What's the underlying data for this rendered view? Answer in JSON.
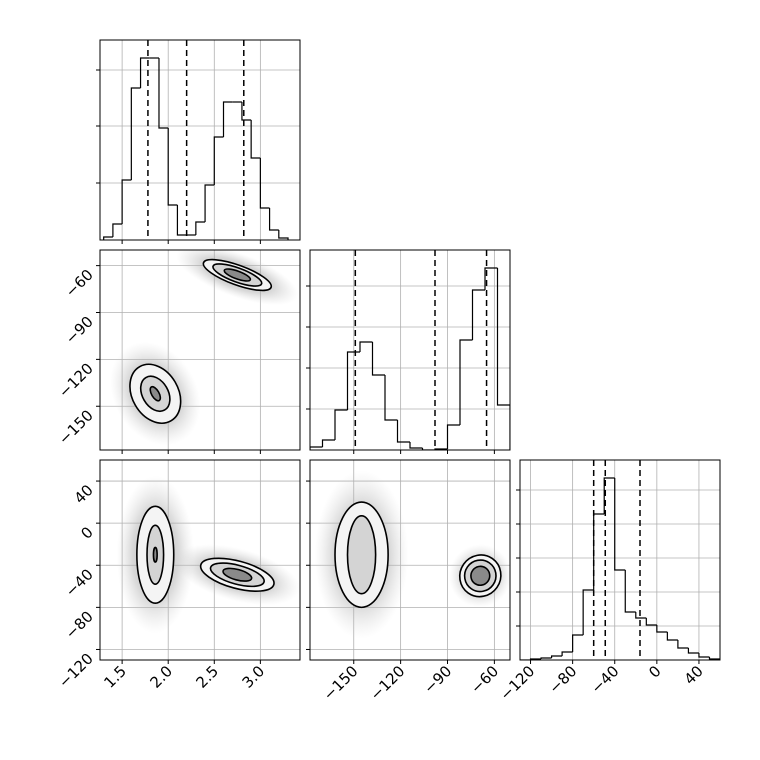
{
  "chart_data": {
    "type": "corner",
    "grid": true,
    "color": "#000000",
    "params": [
      {
        "lim": [
          1.26,
          3.43
        ],
        "ticks": [
          1.5,
          {
            "value": 2,
            "label": "2.0"
          },
          2.5,
          {
            "value": 3,
            "label": "3.0"
          }
        ]
      },
      {
        "lim": [
          -178,
          -50
        ],
        "ticks": [
          {
            "value": -150,
            "label": "−150"
          },
          {
            "value": -120,
            "label": "−120"
          },
          {
            "value": -90,
            "label": "−90"
          },
          {
            "value": -60,
            "label": "−60"
          }
        ]
      },
      {
        "lim": [
          -130,
          60
        ],
        "ticks": [
          {
            "value": -120,
            "label": "−120"
          },
          {
            "value": -80,
            "label": "−80"
          },
          {
            "value": -40,
            "label": "−40"
          },
          0,
          40
        ]
      }
    ],
    "histograms": [
      {
        "bins": [
          1.3,
          1.4,
          1.5,
          1.6,
          1.7,
          1.8,
          1.9,
          2.0,
          2.1,
          2.2,
          2.3,
          2.4,
          2.5,
          2.6,
          2.7,
          2.8,
          2.9,
          3.0,
          3.1,
          3.2,
          3.3
        ],
        "counts": [
          3,
          16,
          60,
          152,
          182,
          182,
          112,
          35,
          5,
          5,
          18,
          55,
          103,
          138,
          138,
          120,
          82,
          32,
          10,
          2
        ],
        "ylim": [
          0,
          200
        ],
        "yticks": [
          57,
          114,
          170
        ],
        "quantiles": [
          1.78,
          2.2,
          2.82
        ]
      },
      {
        "bins": [
          -178,
          -170,
          -162,
          -154,
          -146,
          -138,
          -130,
          -122,
          -114,
          -106,
          -98,
          -90,
          -82,
          -74,
          -66,
          -58,
          -50
        ],
        "counts": [
          3,
          10,
          40,
          98,
          108,
          75,
          30,
          8,
          2,
          0,
          1,
          25,
          110,
          160,
          182,
          45
        ],
        "ylim": [
          0,
          200
        ],
        "yticks": [
          41,
          82,
          123,
          164
        ],
        "quantiles": [
          -149,
          -98,
          -65
        ]
      },
      {
        "bins": [
          -130,
          -120,
          -110,
          -100,
          -90,
          -80,
          -70,
          -60,
          -50,
          -40,
          -30,
          -20,
          -10,
          0,
          10,
          20,
          30,
          40,
          50,
          60
        ],
        "counts": [
          0,
          1,
          2,
          4,
          8,
          25,
          70,
          146,
          182,
          90,
          48,
          42,
          35,
          28,
          20,
          12,
          7,
          3,
          1
        ],
        "ylim": [
          0,
          200
        ],
        "yticks": [
          34,
          68,
          102,
          136,
          170
        ],
        "quantiles": [
          -60,
          -49,
          -16
        ]
      }
    ],
    "pairs": [
      {
        "x": 0,
        "y": 1,
        "clusters": [
          {
            "center": [
              1.86,
              -142
            ],
            "tilt": -30,
            "cloud": [
              0.45,
              35
            ],
            "contours": [
              [
                0.25,
                20
              ],
              [
                0.14,
                12
              ],
              [
                0.04,
                5
              ]
            ]
          },
          {
            "center": [
              2.75,
              -66
            ],
            "tilt": 20,
            "cloud": [
              0.7,
              14
            ],
            "contours": [
              [
                0.39,
                6.3
              ],
              [
                0.28,
                4.5
              ],
              [
                0.15,
                2.5
              ]
            ]
          }
        ]
      },
      {
        "x": 0,
        "y": 2,
        "clusters": [
          {
            "center": [
              1.86,
              -30
            ],
            "tilt": 0,
            "cloud": [
              0.42,
              75
            ],
            "contours": [
              [
                0.2,
                46
              ],
              [
                0.09,
                28
              ],
              [
                0.02,
                7
              ]
            ]
          },
          {
            "center": [
              2.75,
              -49
            ],
            "tilt": 15,
            "cloud": [
              0.7,
              25
            ],
            "contours": [
              [
                0.41,
                13
              ],
              [
                0.3,
                9
              ],
              [
                0.16,
                5
              ]
            ]
          }
        ]
      },
      {
        "x": 1,
        "y": 2,
        "clusters": [
          {
            "center": [
              -145,
              -30
            ],
            "tilt": 0,
            "cloud": [
              30,
              80
            ],
            "contours": [
              [
                17,
                50
              ],
              [
                9,
                37
              ]
            ]
          },
          {
            "center": [
              -69,
              -50
            ],
            "tilt": 35,
            "cloud": [
              20,
              30
            ],
            "contours": [
              [
                13,
                20
              ],
              [
                10,
                15
              ],
              [
                6,
                9
              ]
            ]
          }
        ]
      }
    ]
  }
}
